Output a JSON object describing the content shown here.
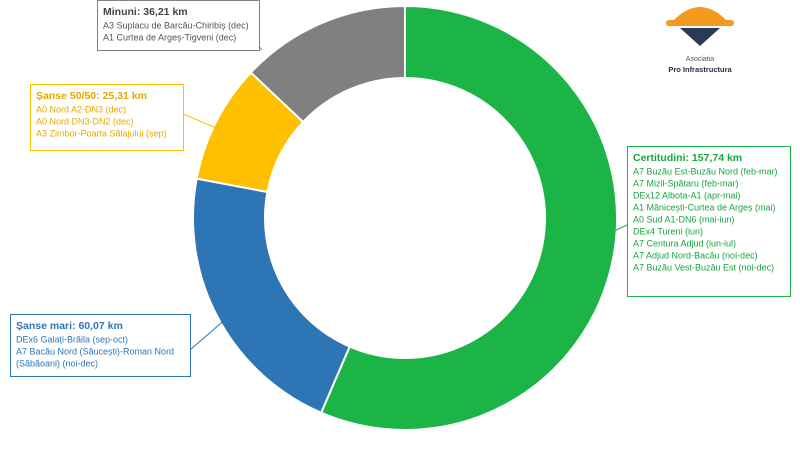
{
  "chart_data": {
    "type": "donut",
    "categories": [
      "Certitudini:",
      "Șanse mari:",
      "Șanse 50/50:",
      "Minuni:"
    ],
    "values": [
      157.74,
      60.07,
      25.31,
      36.21
    ],
    "value_labels": [
      "157,74 km",
      "60,07 km",
      "25,31 km",
      "36,21 km"
    ],
    "colors": [
      "#1db447",
      "#2e75b6",
      "#ffc000",
      "#808080"
    ],
    "details": [
      [
        "A7 Buzău Est-Buzău Nord (feb-mar)",
        "A7 Mizil-Spătaru (feb-mar)",
        "DEx12 Albota-A1 (apr-mai)",
        "A1 Mănicești-Curtea de Argeș (mai)",
        "A0 Sud A1-DN6 (mai-iun)",
        "DEx4 Tureni (iun)",
        "A7 Centura Adjud (iun-iul)",
        "A7 Adjud Nord-Bacău (noi-dec)",
        "A7 Buzău Vest-Buzău Est (noi-dec)"
      ],
      [
        "DEx6 Galați-Brăila (sep-oct)",
        "A7 Bacău Nord (Săucești)-Roman Nord",
        "(Săbăoani) (noi-dec)"
      ],
      [
        "A0 Nord A2-DN3 (dec)",
        "A0 Nord DN3-DN2 (dec)",
        "A3 Zimbor-Poarta Sălajului (sep)"
      ],
      [
        "A3 Suplacu de Barcău-Chiribiș (dec)",
        "A1 Curtea de Argeș-Tigveni (dec)"
      ]
    ]
  },
  "logo": {
    "line1": "Asociatia",
    "line2": "Pro Infrastructura"
  }
}
